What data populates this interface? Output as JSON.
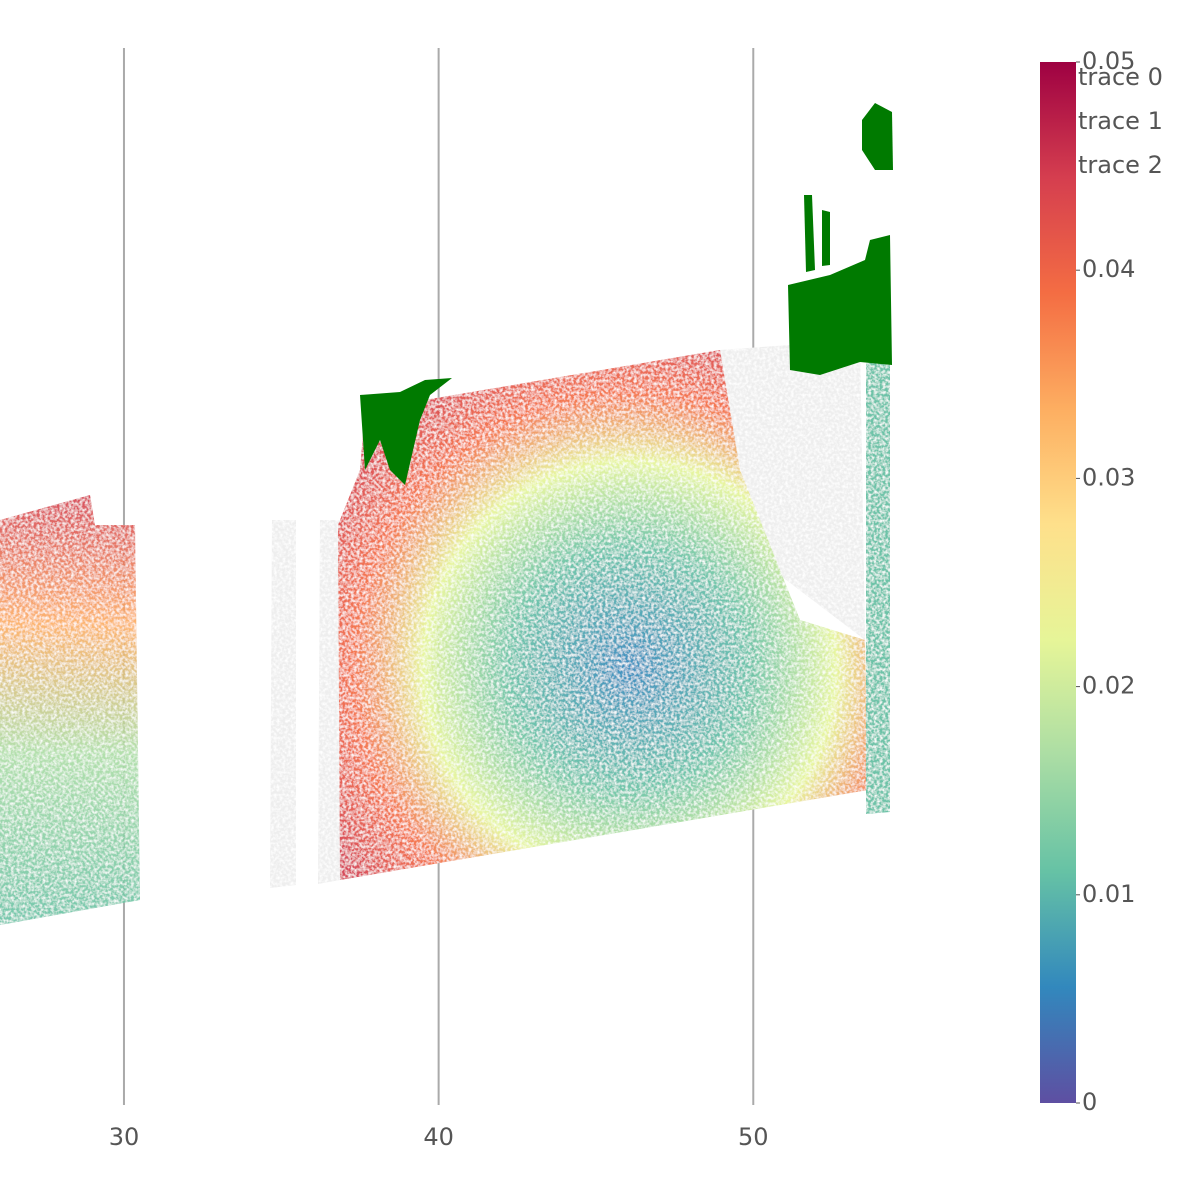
{
  "chart_data": {
    "type": "scatter",
    "series": [
      {
        "name": "trace 0"
      },
      {
        "name": "trace 1"
      },
      {
        "name": "trace 2"
      }
    ],
    "xlim": [
      26.06,
      58.0
    ],
    "xticks": [
      30,
      40,
      50
    ],
    "grid": true,
    "colorbar": {
      "lim": [
        0,
        0.05
      ],
      "ticks": [
        0,
        0.01,
        0.02,
        0.03,
        0.04,
        {
          "value": 0.05,
          "label": "0.05"
        }
      ],
      "colorscale": [
        "#5e4fa2",
        "#3288bd",
        "#66c2a5",
        "#abdda4",
        "#e6f598",
        "#fee08b",
        "#fdae61",
        "#f46d43",
        "#d53e4f",
        "#9e0142"
      ]
    },
    "legend": "top-right"
  }
}
